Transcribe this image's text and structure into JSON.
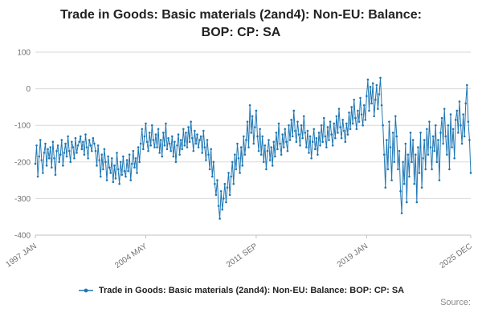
{
  "title": "Trade in Goods: Basic materials (2and4): Non-EU: Balance: BOP: CP: SA",
  "legend": {
    "label": "Trade in Goods: Basic materials (2and4): Non-EU: Balance: BOP: CP: SA"
  },
  "source_label": "Source:",
  "colors": {
    "series": "#1f77b4",
    "grid": "#d9d9d9",
    "axis": "#c0c0c0",
    "tick_text": "#707070"
  },
  "chart_data": {
    "type": "line",
    "title": "Trade in Goods: Basic materials (2and4): Non-EU: Balance: BOP: CP: SA",
    "xlabel": "",
    "ylabel": "",
    "ylim": [
      -400,
      100
    ],
    "yticks": [
      100,
      0,
      -100,
      -200,
      -300,
      -400
    ],
    "grid": true,
    "legend_position": "bottom",
    "frequency": "monthly",
    "x_start": "1997 JAN",
    "x_end": "2025 DEC",
    "xticks": [
      {
        "label": "1997 JAN",
        "index": 0
      },
      {
        "label": "2004 MAY",
        "index": 88
      },
      {
        "label": "2011 SEP",
        "index": 176
      },
      {
        "label": "2019 JAN",
        "index": 264
      },
      {
        "label": "2025 DEC",
        "index": 347
      }
    ],
    "series": [
      {
        "name": "Trade in Goods: Basic materials (2and4): Non-EU: Balance: BOP: CP: SA",
        "values": [
          -205,
          -155,
          -240,
          -185,
          -140,
          -195,
          -230,
          -175,
          -150,
          -210,
          -165,
          -190,
          -160,
          -215,
          -145,
          -190,
          -235,
          -170,
          -155,
          -200,
          -180,
          -140,
          -210,
          -175,
          -150,
          -185,
          -130,
          -170,
          -200,
          -145,
          -160,
          -190,
          -135,
          -175,
          -155,
          -145,
          -130,
          -165,
          -145,
          -180,
          -125,
          -160,
          -190,
          -140,
          -155,
          -170,
          -135,
          -150,
          -170,
          -210,
          -155,
          -195,
          -240,
          -180,
          -220,
          -165,
          -200,
          -250,
          -185,
          -215,
          -230,
          -190,
          -255,
          -210,
          -245,
          -175,
          -220,
          -260,
          -200,
          -235,
          -185,
          -225,
          -240,
          -195,
          -225,
          -180,
          -250,
          -205,
          -170,
          -215,
          -190,
          -230,
          -160,
          -200,
          -150,
          -110,
          -165,
          -130,
          -95,
          -145,
          -170,
          -120,
          -155,
          -100,
          -140,
          -160,
          -125,
          -160,
          -110,
          -175,
          -140,
          -185,
          -120,
          -155,
          -95,
          -165,
          -135,
          -150,
          -170,
          -130,
          -185,
          -145,
          -200,
          -155,
          -125,
          -180,
          -140,
          -165,
          -110,
          -155,
          -120,
          -160,
          -105,
          -145,
          -90,
          -135,
          -170,
          -115,
          -150,
          -125,
          -160,
          -140,
          -130,
          -175,
          -115,
          -160,
          -195,
          -140,
          -180,
          -220,
          -165,
          -240,
          -200,
          -260,
          -290,
          -250,
          -320,
          -355,
          -280,
          -330,
          -300,
          -260,
          -310,
          -270,
          -230,
          -290,
          -240,
          -200,
          -260,
          -180,
          -220,
          -150,
          -190,
          -230,
          -160,
          -210,
          -130,
          -180,
          -140,
          -90,
          -160,
          -45,
          -120,
          -75,
          -150,
          -105,
          -60,
          -130,
          -170,
          -110,
          -180,
          -130,
          -200,
          -155,
          -220,
          -170,
          -140,
          -195,
          -160,
          -210,
          -145,
          -185,
          -120,
          -165,
          -95,
          -150,
          -180,
          -125,
          -160,
          -110,
          -145,
          -170,
          -100,
          -140,
          -85,
          -130,
          -60,
          -115,
          -145,
          -90,
          -125,
          -155,
          -100,
          -135,
          -75,
          -120,
          -160,
          -115,
          -175,
          -130,
          -190,
          -145,
          -110,
          -165,
          -135,
          -180,
          -120,
          -155,
          -100,
          -145,
          -80,
          -130,
          -160,
          -105,
          -140,
          -90,
          -125,
          -155,
          -95,
          -135,
          -75,
          -120,
          -55,
          -105,
          -135,
          -85,
          -115,
          -145,
          -95,
          -125,
          -65,
          -110,
          -50,
          -95,
          -30,
          -80,
          -110,
          -60,
          -90,
          -25,
          -70,
          -100,
          -45,
          -85,
          -20,
          25,
          -60,
          5,
          -40,
          15,
          -75,
          -30,
          10,
          -55,
          -15,
          30,
          -45,
          -100,
          -180,
          -270,
          -140,
          -220,
          -90,
          -160,
          -250,
          -120,
          -200,
          -75,
          -130,
          -220,
          -170,
          -280,
          -340,
          -200,
          -260,
          -150,
          -310,
          -180,
          -240,
          -120,
          -200,
          -140,
          -260,
          -180,
          -310,
          -160,
          -230,
          -120,
          -270,
          -190,
          -140,
          -220,
          -110,
          -180,
          -90,
          -160,
          -220,
          -130,
          -170,
          -100,
          -200,
          -140,
          -250,
          -120,
          -80,
          -150,
          -55,
          -130,
          -180,
          -100,
          -220,
          -70,
          -160,
          -110,
          -190,
          -85,
          -60,
          -120,
          -35,
          -100,
          -150,
          -70,
          -130,
          -40,
          10,
          -90,
          -140,
          -230
        ]
      }
    ]
  }
}
